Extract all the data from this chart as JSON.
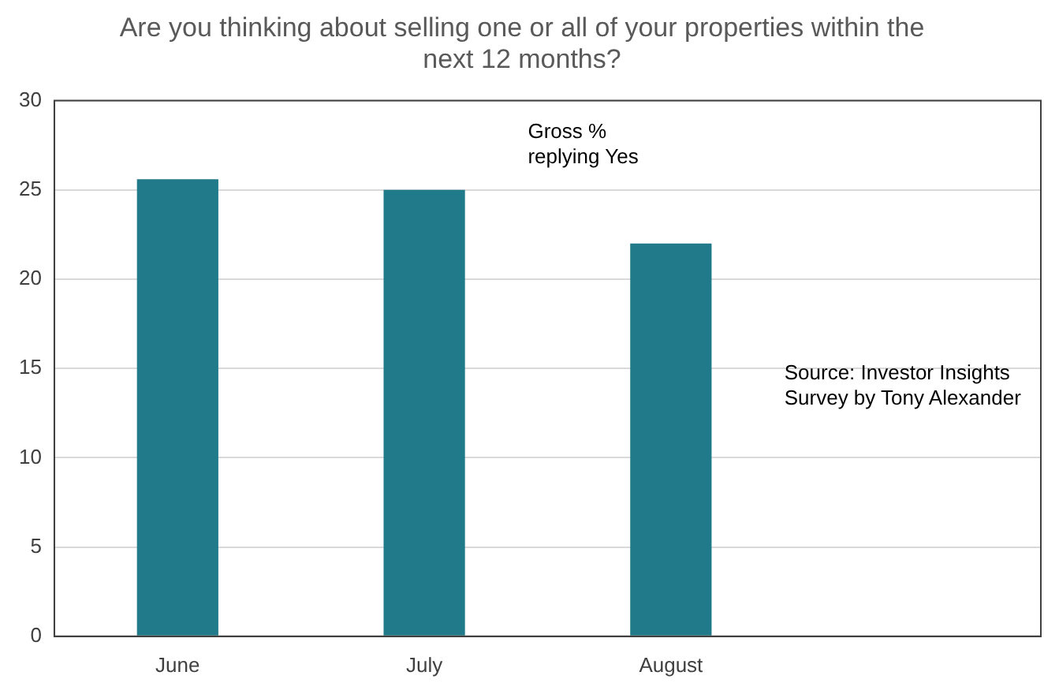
{
  "chart_data": {
    "type": "bar",
    "title": "Are you thinking about selling one or all of your properties within the next 12 months?",
    "categories": [
      "June",
      "July",
      "August",
      null
    ],
    "values": [
      25.6,
      25.0,
      22.0,
      null
    ],
    "color": "#217a8a",
    "ylim": [
      0,
      30
    ],
    "yticks": [
      0,
      5,
      10,
      15,
      20,
      25,
      30
    ],
    "grid": "y",
    "legend": false,
    "annotations": [
      "Gross % replying Yes",
      "Source: Investor Insights Survey by Tony Alexander"
    ]
  }
}
